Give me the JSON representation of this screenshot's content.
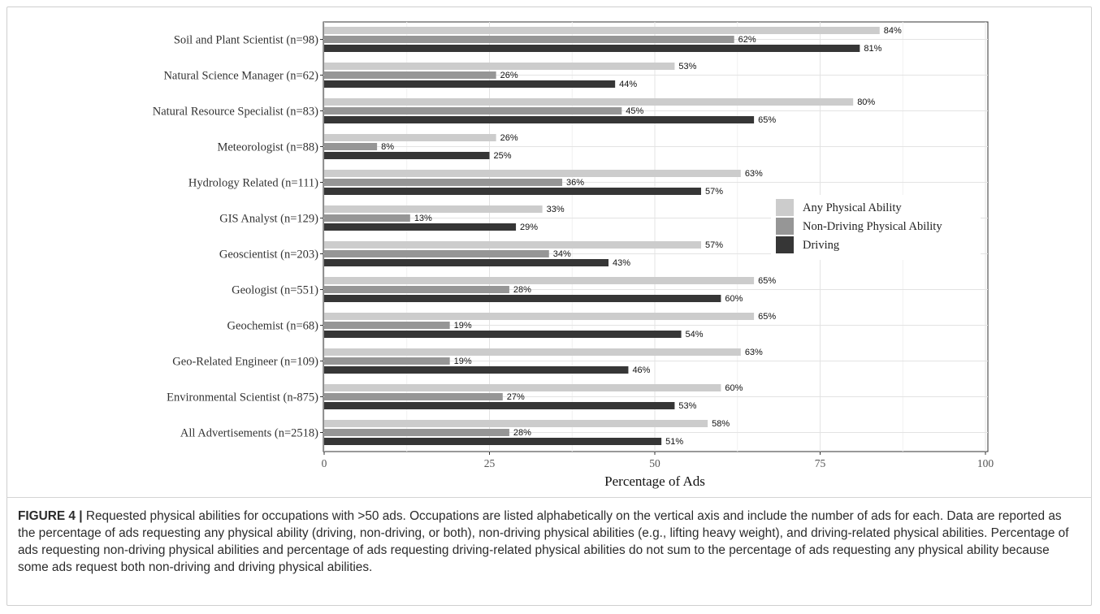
{
  "chart_data": {
    "type": "bar",
    "orientation": "horizontal",
    "categories": [
      "Soil and Plant Scientist (n=98)",
      "Natural Science Manager (n=62)",
      "Natural Resource Specialist (n=83)",
      "Meteorologist (n=88)",
      "Hydrology Related (n=111)",
      "GIS Analyst (n=129)",
      "Geoscientist (n=203)",
      "Geologist (n=551)",
      "Geochemist (n=68)",
      "Geo-Related Engineer (n=109)",
      "Environmental Scientist (n-875)",
      "All Advertisements (n=2518)"
    ],
    "series": [
      {
        "name": "Any Physical Ability",
        "color": "#cccccc",
        "values": [
          84,
          53,
          80,
          26,
          63,
          33,
          57,
          65,
          65,
          63,
          60,
          58
        ]
      },
      {
        "name": "Non-Driving Physical Ability",
        "color": "#969696",
        "values": [
          62,
          26,
          45,
          8,
          36,
          13,
          34,
          28,
          19,
          19,
          27,
          28
        ]
      },
      {
        "name": "Driving",
        "color": "#363636",
        "values": [
          81,
          44,
          65,
          25,
          57,
          29,
          43,
          60,
          54,
          46,
          53,
          51
        ]
      }
    ],
    "data_label_suffix": "%",
    "xlabel": "Percentage of Ads",
    "ylabel": "",
    "xlim": [
      0,
      100
    ],
    "xticks": [
      0,
      25,
      50,
      75,
      100
    ],
    "grid": true,
    "legend": "right"
  },
  "caption": {
    "label": "FIGURE 4 |",
    "text": " Requested physical abilities for occupations with >50 ads. Occupations are listed alphabetically on the vertical axis and include the number of ads for each. Data are reported as the percentage of ads requesting any physical ability (driving, non-driving, or both), non-driving physical abilities (e.g., lifting heavy weight), and driving-related physical abilities. Percentage of ads requesting non-driving physical abilities and percentage of ads requesting driving-related physical abilities do not sum to the percentage of ads requesting any physical ability because some ads request both non-driving and driving physical abilities."
  }
}
